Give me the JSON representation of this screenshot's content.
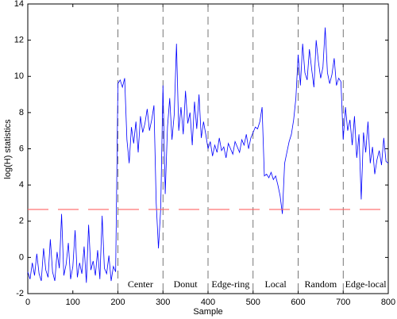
{
  "chart_data": {
    "type": "line",
    "xlabel": "Sample",
    "ylabel": "log(H) statistics",
    "xlim": [
      0,
      800
    ],
    "ylim": [
      -2,
      14
    ],
    "xticks": [
      0,
      100,
      200,
      300,
      400,
      500,
      600,
      700,
      800
    ],
    "yticks": [
      -2,
      0,
      2,
      4,
      6,
      8,
      10,
      12,
      14
    ],
    "threshold": 2.65,
    "threshold_color": "#ff6666",
    "vlines": [
      200,
      300,
      400,
      500,
      600,
      700
    ],
    "annotations": [
      "Center",
      "Donut",
      "Edge-ring",
      "Local",
      "Random",
      "Edge-local"
    ],
    "x": [
      0,
      5,
      10,
      15,
      20,
      25,
      30,
      35,
      40,
      45,
      50,
      55,
      60,
      65,
      70,
      75,
      80,
      85,
      90,
      95,
      100,
      105,
      110,
      115,
      120,
      125,
      130,
      135,
      140,
      145,
      150,
      155,
      160,
      165,
      170,
      175,
      180,
      185,
      190,
      195,
      200,
      205,
      210,
      215,
      220,
      225,
      230,
      235,
      240,
      245,
      250,
      255,
      260,
      265,
      270,
      275,
      280,
      285,
      290,
      295,
      300,
      305,
      310,
      315,
      320,
      325,
      330,
      335,
      340,
      345,
      350,
      355,
      360,
      365,
      370,
      375,
      380,
      385,
      390,
      395,
      400,
      405,
      410,
      415,
      420,
      425,
      430,
      435,
      440,
      445,
      450,
      455,
      460,
      465,
      470,
      475,
      480,
      485,
      490,
      495,
      500,
      505,
      510,
      515,
      520,
      525,
      530,
      535,
      540,
      545,
      550,
      555,
      560,
      565,
      570,
      575,
      580,
      585,
      590,
      595,
      600,
      605,
      610,
      615,
      620,
      625,
      630,
      635,
      640,
      645,
      650,
      655,
      660,
      665,
      670,
      675,
      680,
      685,
      690,
      695,
      700,
      705,
      710,
      715,
      720,
      725,
      730,
      735,
      740,
      745,
      750,
      755,
      760,
      765,
      770,
      775,
      780,
      785,
      790,
      795,
      800
    ],
    "series": [
      {
        "color": "#0000ff",
        "values": [
          -0.8,
          -1.2,
          -0.3,
          -1.0,
          0.2,
          -0.9,
          -1.3,
          0.5,
          -0.7,
          -1.1,
          1.0,
          -0.8,
          -1.3,
          0.3,
          -0.6,
          2.4,
          -1.0,
          -0.4,
          0.8,
          -1.2,
          -0.5,
          1.5,
          -1.1,
          -0.3,
          -0.9,
          0.6,
          -1.4,
          1.8,
          -0.7,
          -0.2,
          -1.0,
          0.4,
          -1.2,
          2.3,
          -0.6,
          -0.9,
          0.1,
          -1.3,
          -0.5,
          -0.8,
          9.6,
          9.8,
          9.4,
          9.9,
          6.5,
          5.2,
          7.2,
          6.3,
          7.5,
          5.8,
          7.8,
          6.9,
          7.4,
          8.2,
          7.0,
          7.6,
          8.4,
          3.0,
          0.5,
          2.7,
          9.5,
          3.5,
          7.2,
          8.8,
          6.5,
          7.9,
          11.8,
          7.0,
          8.3,
          6.8,
          9.2,
          7.4,
          8.0,
          6.2,
          8.6,
          7.1,
          9.0,
          6.6,
          7.5,
          6.8,
          6.0,
          6.4,
          5.6,
          6.2,
          5.8,
          6.6,
          5.9,
          6.1,
          5.5,
          6.3,
          6.0,
          5.7,
          6.4,
          6.1,
          5.8,
          6.5,
          6.2,
          6.8,
          6.0,
          6.6,
          6.9,
          7.2,
          7.1,
          7.5,
          8.3,
          4.5,
          4.6,
          4.4,
          4.7,
          4.3,
          4.5,
          4.0,
          3.4,
          2.4,
          5.2,
          5.8,
          6.4,
          6.8,
          7.6,
          8.8,
          11.2,
          9.5,
          11.8,
          10.2,
          9.8,
          11.5,
          10.4,
          9.4,
          12.0,
          10.8,
          9.9,
          10.5,
          12.7,
          10.2,
          9.6,
          10.1,
          11.0,
          9.5,
          9.9,
          9.7,
          6.5,
          8.3,
          7.0,
          7.6,
          6.2,
          7.8,
          5.5,
          6.8,
          3.2,
          6.9,
          5.8,
          7.5,
          5.2,
          6.1,
          4.6,
          5.4,
          5.9,
          5.1,
          6.6,
          5.3,
          5.2
        ]
      }
    ]
  }
}
